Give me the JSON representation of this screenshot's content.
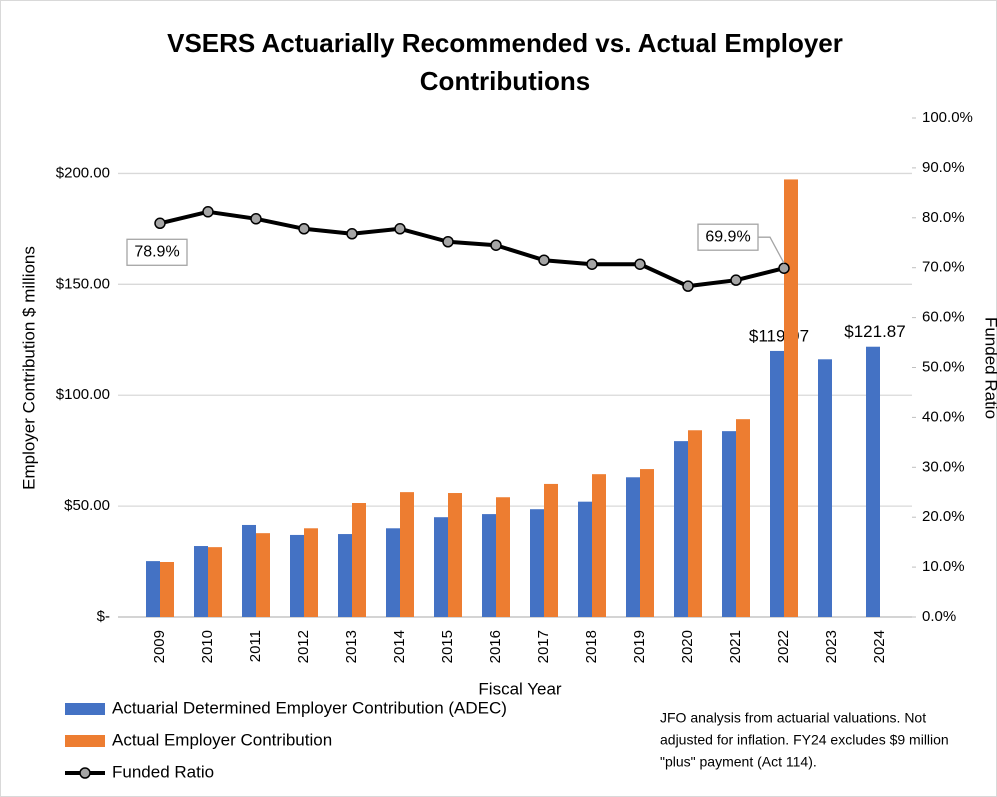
{
  "chart_data": {
    "type": "bar",
    "title": "VSERS Actuarially Recommended vs. Actual Employer Contributions",
    "x_label": "Fiscal Year",
    "y_label": "Employer Contribution $ millions",
    "y2_label": "Funded Ratio",
    "categories": [
      "2009",
      "2010",
      "2011",
      "2012",
      "2013",
      "2014",
      "2015",
      "2016",
      "2017",
      "2018",
      "2019",
      "2020",
      "2021",
      "2022",
      "2023",
      "2024"
    ],
    "ylim": [
      0,
      225
    ],
    "yticks": [
      {
        "value": 0,
        "label": "$-"
      },
      {
        "value": 50,
        "label": "$50.00"
      },
      {
        "value": 100,
        "label": "$100.00"
      },
      {
        "value": 150,
        "label": "$150.00"
      },
      {
        "value": 200,
        "label": "$200.00"
      }
    ],
    "y2lim": [
      0,
      100
    ],
    "y2ticks": [
      {
        "value": 0,
        "label": "0.0%"
      },
      {
        "value": 10,
        "label": "10.0%"
      },
      {
        "value": 20,
        "label": "20.0%"
      },
      {
        "value": 30,
        "label": "30.0%"
      },
      {
        "value": 40,
        "label": "40.0%"
      },
      {
        "value": 50,
        "label": "50.0%"
      },
      {
        "value": 60,
        "label": "60.0%"
      },
      {
        "value": 70,
        "label": "70.0%"
      },
      {
        "value": 80,
        "label": "80.0%"
      },
      {
        "value": 90,
        "label": "90.0%"
      },
      {
        "value": 100,
        "label": "100.0%"
      }
    ],
    "grid": true,
    "series": [
      {
        "name": "Actuarial Determined Employer Contribution (ADEC)",
        "color": "#4472c4",
        "type": "bar",
        "values": [
          25.2,
          32,
          41.5,
          37,
          37.4,
          40,
          45,
          46.4,
          48.6,
          52,
          63,
          79.3,
          83.8,
          119.97,
          116.2,
          121.87
        ],
        "value_labels": [
          null,
          null,
          null,
          null,
          null,
          null,
          null,
          null,
          null,
          null,
          null,
          null,
          null,
          "$119.97",
          null,
          "$121.87"
        ]
      },
      {
        "name": "Actual Employer Contribution",
        "color": "#ed7d31",
        "type": "bar",
        "values": [
          24.8,
          31.5,
          37.8,
          40,
          51.4,
          56.3,
          55.9,
          54,
          60,
          64.4,
          66.7,
          84.2,
          89.2,
          197.3,
          null,
          null
        ]
      },
      {
        "name": "Funded Ratio",
        "color": "#000000",
        "type": "line",
        "axis": "y2",
        "values": [
          78.9,
          81.2,
          79.8,
          77.8,
          76.8,
          77.8,
          75.2,
          74.5,
          71.5,
          70.7,
          70.7,
          66.3,
          67.5,
          69.9,
          null,
          null
        ],
        "value_labels": [
          "78.9%",
          null,
          null,
          null,
          null,
          null,
          null,
          null,
          null,
          null,
          null,
          null,
          null,
          "69.9%",
          null,
          null
        ]
      }
    ],
    "note": [
      "JFO analysis from actuarial valuations. Not",
      "adjusted for inflation. FY24 excludes $9 million",
      "\"plus\" payment (Act 114)."
    ]
  }
}
